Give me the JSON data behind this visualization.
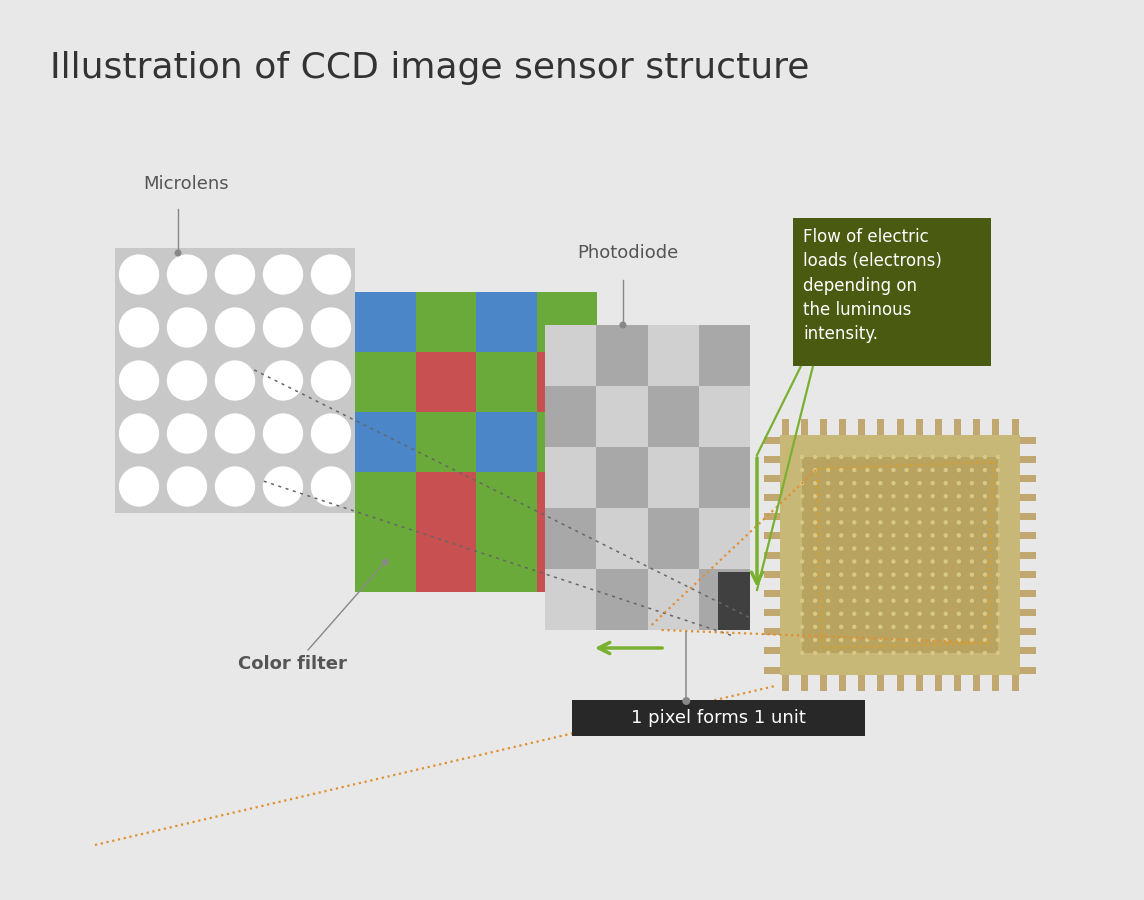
{
  "title": "Illustration of CCD image sensor structure",
  "background_color": "#e8e8e8",
  "title_fontsize": 26,
  "title_color": "#333333",
  "microlens_label": "Microlens",
  "color_filter_label": "Color filter",
  "photodiode_label": "Photodiode",
  "pixel_label": "1 pixel forms 1 unit",
  "flow_label": "Flow of electric\nloads (electrons)\ndepending on\nthe luminous\nintensity.",
  "microlens_bg": "#c8c8c8",
  "microlens_circle": "#ffffff",
  "color_filter_green": "#6aaa3a",
  "color_filter_blue": "#4a86c8",
  "color_filter_red": "#c85050",
  "photodiode_light": "#d0d0d0",
  "photodiode_dark": "#a8a8a8",
  "photodiode_black": "#404040",
  "chip_outer": "#c8b878",
  "chip_inner": "#b8a460",
  "chip_dots": "#d8c888",
  "chip_pin": "#c0a870",
  "chip_line_color": "#d4a030",
  "arrow_green": "#7ab030",
  "arrow_orange": "#e09030",
  "label_color": "#555555",
  "flow_box_bg": "#4a5a10",
  "flow_box_text": "#ffffff",
  "pixel_box_bg": "#282828",
  "pixel_box_text": "#ffffff",
  "dot_line_color": "#666666"
}
